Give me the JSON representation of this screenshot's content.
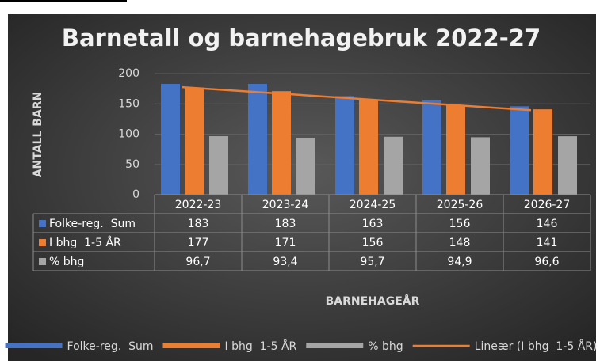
{
  "chart_data": {
    "type": "bar",
    "title": "Barnetall og barnehagebruk 2022-27",
    "y_axis_label": "ANTALL BARN",
    "x_axis_label": "BARNEHAGEÅR",
    "categories": [
      "2022-23",
      "2023-24",
      "2024-25",
      "2025-26",
      "2026-27"
    ],
    "series": [
      {
        "name": "Folke-reg.  Sum",
        "color": "#4472c4",
        "values": [
          183,
          183,
          163,
          156,
          146
        ]
      },
      {
        "name": "I bhg  1-5 ÅR",
        "color": "#ed7d31",
        "values": [
          177,
          171,
          156,
          148,
          141
        ]
      },
      {
        "name": "% bhg",
        "color": "#a5a5a5",
        "values": [
          96.7,
          93.4,
          95.7,
          94.9,
          96.6
        ],
        "value_labels": [
          "96,7",
          "93,4",
          "95,7",
          "94,9",
          "96,6"
        ]
      }
    ],
    "trendline": {
      "name": "Lineær (I bhg  1-5 ÅR)",
      "color": "#ed7d31",
      "of_series": 1
    },
    "ylim": [
      0,
      200
    ],
    "yticks": [
      0,
      50,
      100,
      150,
      200
    ],
    "grid": true,
    "legend": "bottom",
    "data_table": true
  }
}
